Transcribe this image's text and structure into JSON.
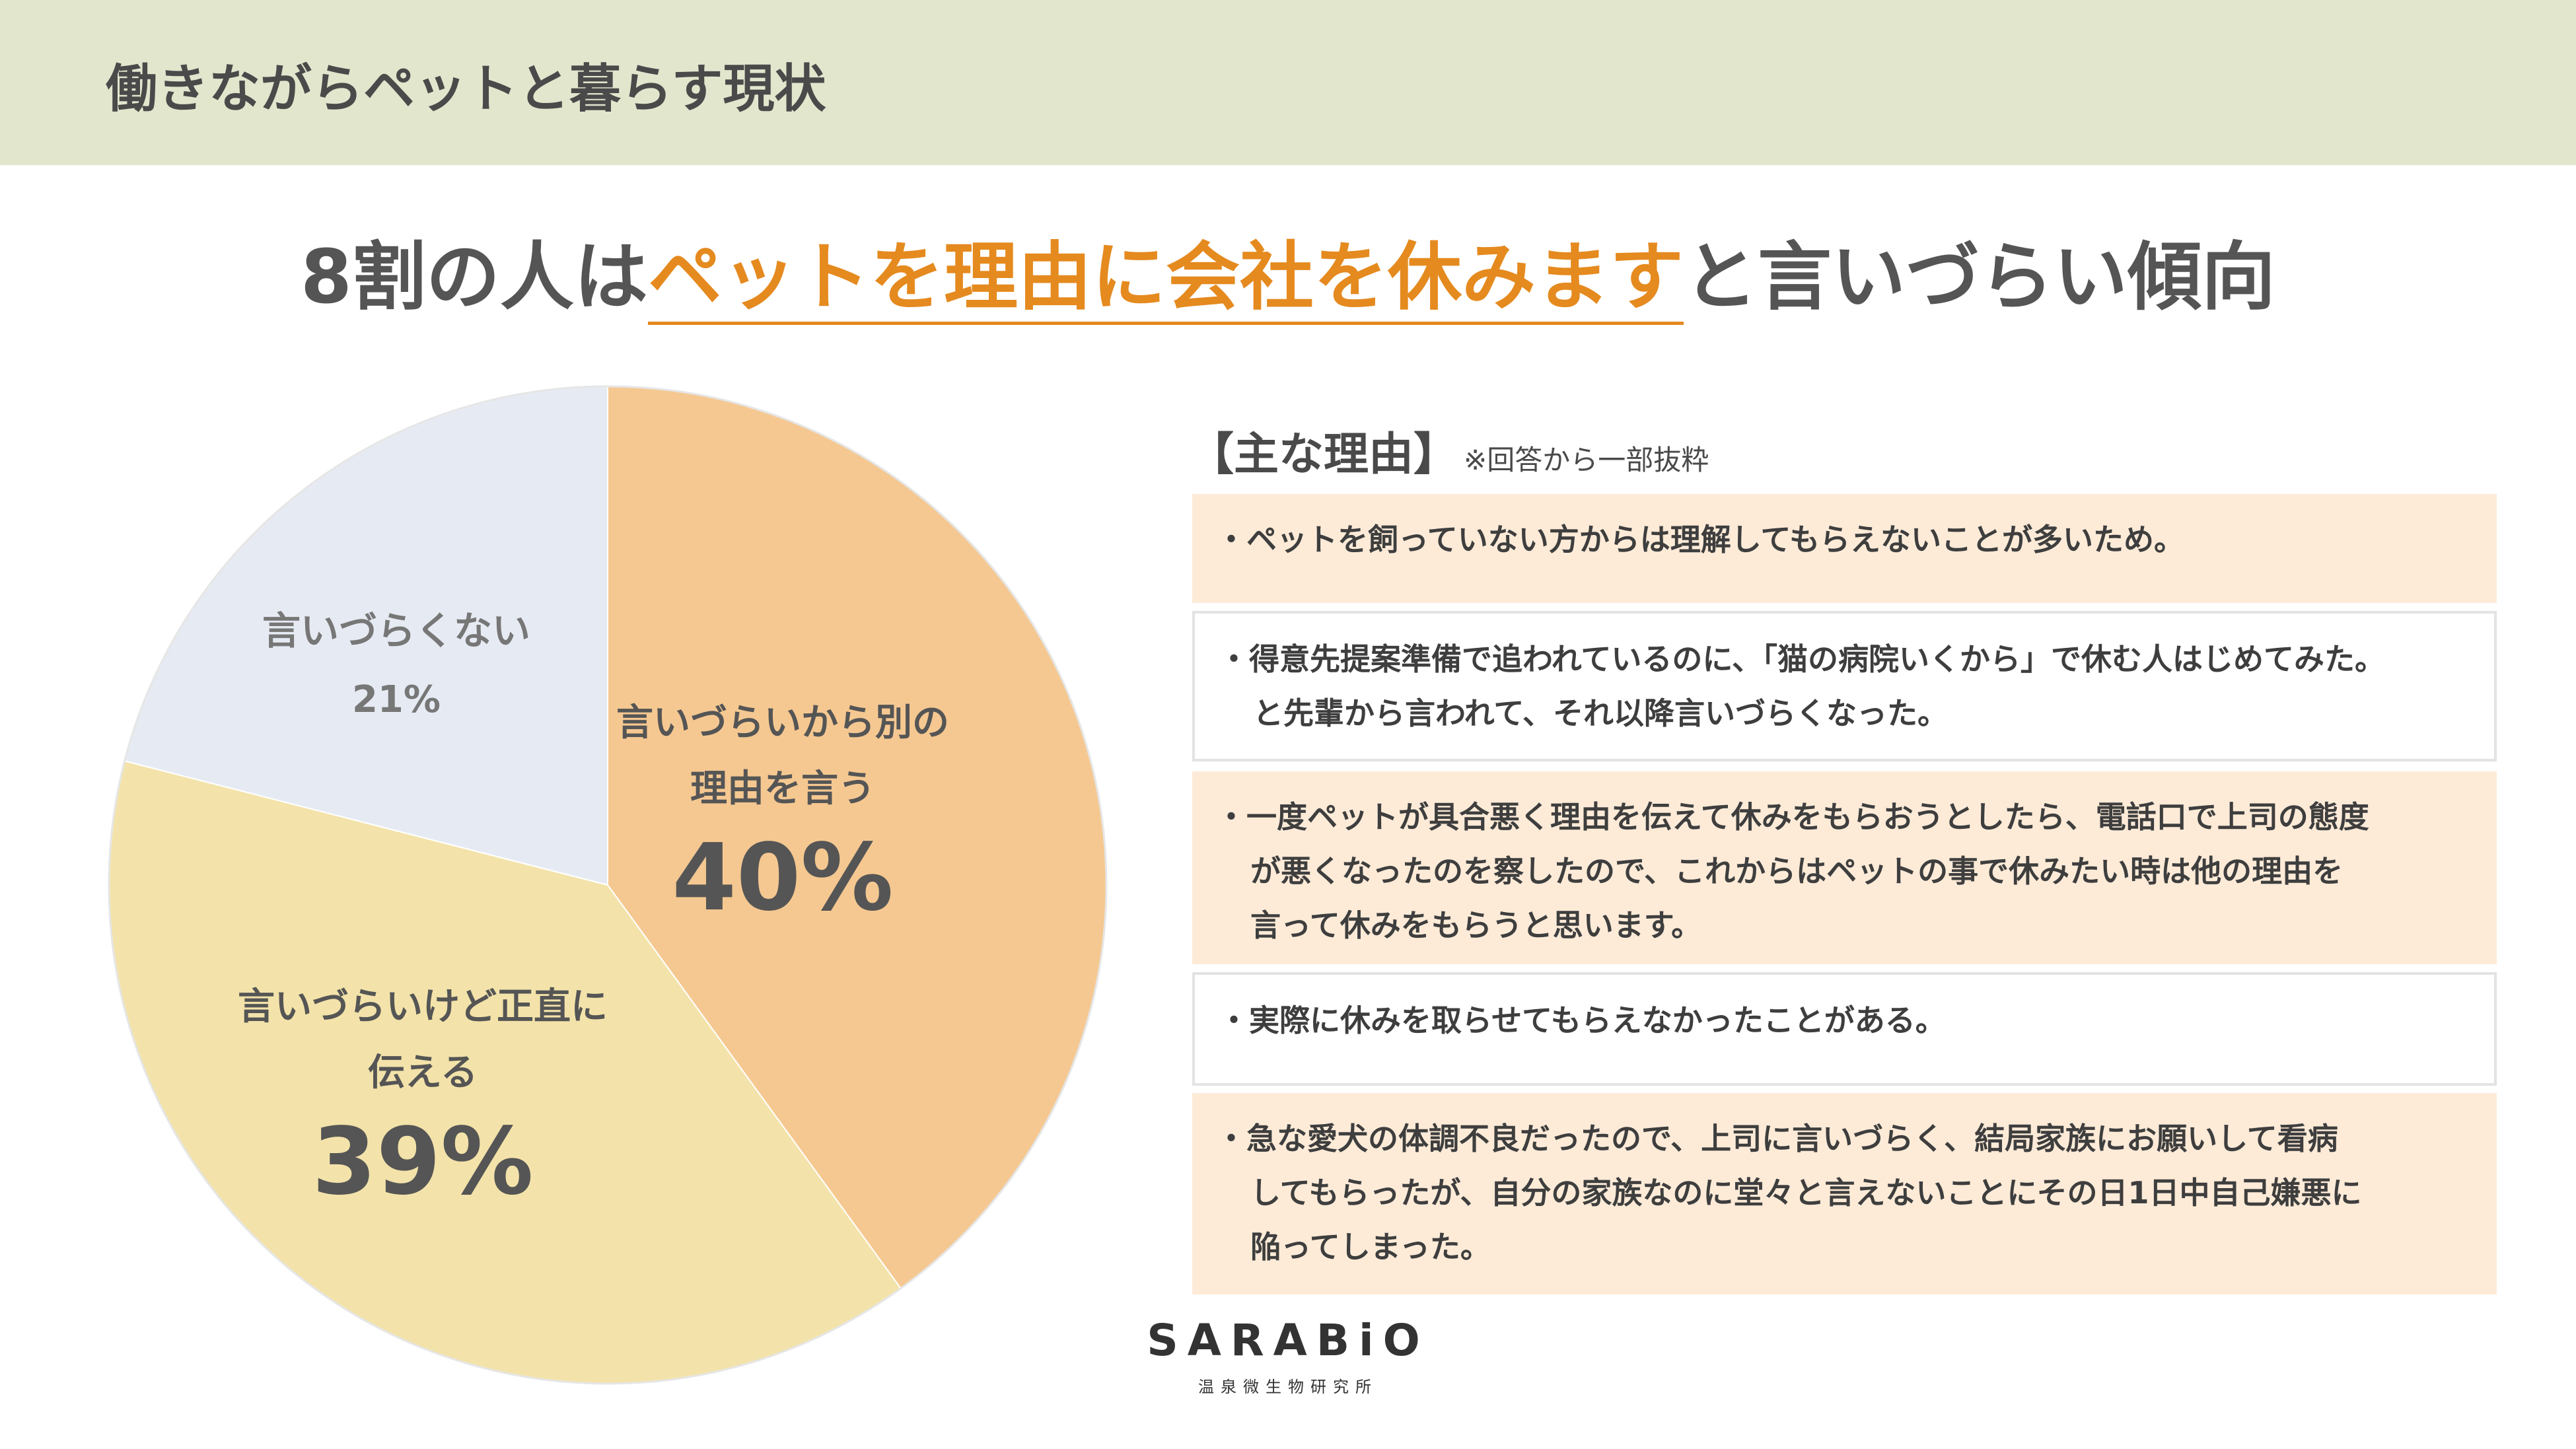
{
  "header": {
    "title": "働きながらペットと暮らす現状"
  },
  "headline": {
    "prefix": "8割の人は",
    "highlight": "ペットを理由に会社を休みます",
    "suffix": "と言いづらい傾向"
  },
  "colors": {
    "header_band": "#e1e6cd",
    "accent": "#e58a1f",
    "reason_fill": "#fdebd8"
  },
  "chart_data": {
    "type": "pie",
    "title": "",
    "unit": "%",
    "slices": [
      {
        "lines": [
          "言いづらいから別の",
          "理由を言う"
        ],
        "value": 40,
        "pct_label": "40%",
        "color": "#f5c891"
      },
      {
        "lines": [
          "言いづらいけど正直に",
          "伝える"
        ],
        "value": 39,
        "pct_label": "39%",
        "color": "#f3e3aa"
      },
      {
        "lines": [
          "言いづらくない"
        ],
        "value": 21,
        "pct_label": "21%",
        "color": "#e6ebf3"
      }
    ]
  },
  "reasons": {
    "heading": "【主な理由】",
    "note": "※回答から一部抜粋",
    "items": [
      {
        "lines": [
          "・ペットを飼っていない方からは理解してもらえないことが多いため。"
        ]
      },
      {
        "lines": [
          "・得意先提案準備で追われているのに、「猫の病院いくから」で休む人はじめてみた。",
          "と先輩から言われて、それ以降言いづらくなった。"
        ]
      },
      {
        "lines": [
          "・一度ペットが具合悪く理由を伝えて休みをもらおうとしたら、電話口で上司の態度",
          "が悪くなったのを察したので、これからはペットの事で休みたい時は他の理由を",
          "言って休みをもらうと思います。"
        ]
      },
      {
        "lines": [
          "・実際に休みを取らせてもらえなかったことがある。"
        ]
      },
      {
        "lines": [
          "・急な愛犬の体調不良だったので、上司に言いづらく、結局家族にお願いして看病",
          "してもらったが、自分の家族なのに堂々と言えないことにその日1日中自己嫌悪に",
          "陥ってしまった。"
        ]
      }
    ]
  },
  "logo": {
    "brand": "SARABiO",
    "sub": "温泉微生物研究所"
  }
}
